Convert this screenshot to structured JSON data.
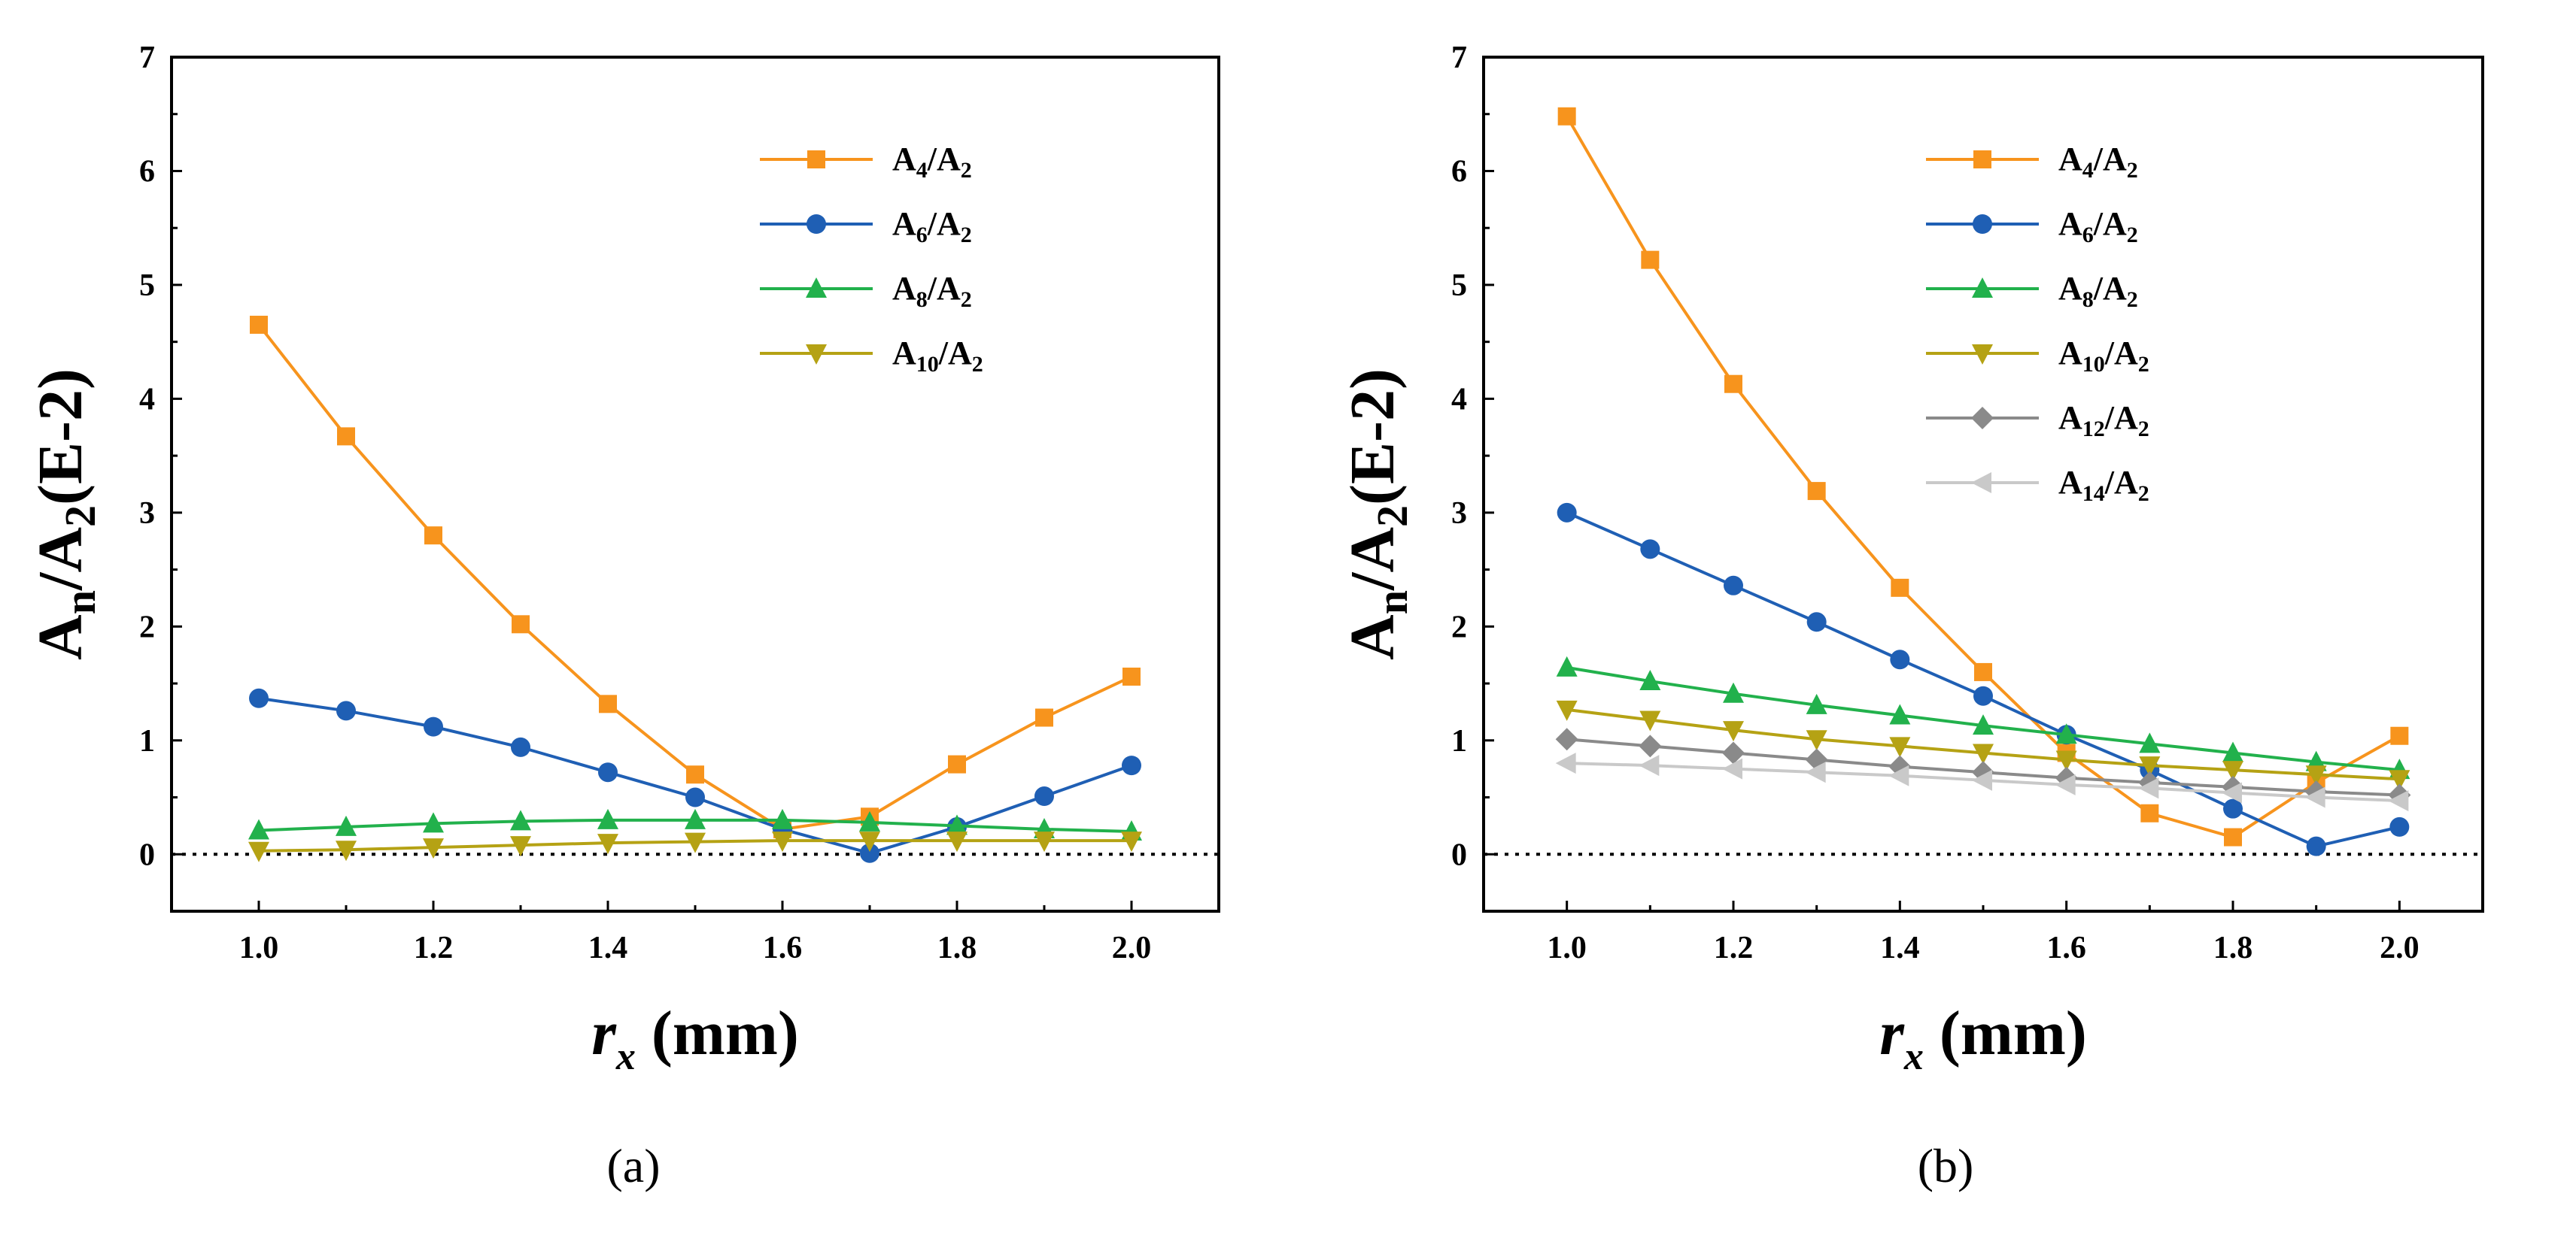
{
  "colors": {
    "A4": "#f7941d",
    "A6": "#1f5fb4",
    "A8": "#22b14c",
    "A10": "#b5a214",
    "A12": "#8a8a8a",
    "A14": "#c9c9c9",
    "axis": "#000000",
    "zero_line": "#000000"
  },
  "chart_data": [
    {
      "panel_label": "(a)",
      "type": "line",
      "xlabel_var": "r",
      "xlabel_sub": "x",
      "xlabel_unit": " (mm)",
      "ylabel_main": "A",
      "ylabel_sub1": "n",
      "ylabel_mid": "/A",
      "ylabel_sub2": "2",
      "ylabel_tail": "(E-2)",
      "xlim": [
        0.9,
        2.1
      ],
      "ylim": [
        -0.5,
        7
      ],
      "xticks": [
        "1.0",
        "1.2",
        "1.4",
        "1.6",
        "1.8",
        "2.0"
      ],
      "yticks": [
        "0",
        "1",
        "2",
        "3",
        "4",
        "5",
        "6",
        "7"
      ],
      "zero_line": true,
      "x": [
        1.0,
        1.1,
        1.2,
        1.3,
        1.4,
        1.5,
        1.6,
        1.7,
        1.8,
        1.9,
        2.0
      ],
      "series": [
        {
          "key": "A4",
          "name_main": "A",
          "name_sub": "4",
          "name_tail": "/A",
          "name_sub2": "2",
          "marker": "square",
          "values": [
            4.65,
            3.67,
            2.8,
            2.02,
            1.32,
            0.7,
            0.22,
            0.33,
            0.79,
            1.2,
            1.56
          ]
        },
        {
          "key": "A6",
          "name_main": "A",
          "name_sub": "6",
          "name_tail": "/A",
          "name_sub2": "2",
          "marker": "circle",
          "values": [
            1.37,
            1.26,
            1.12,
            0.94,
            0.72,
            0.5,
            0.22,
            0.01,
            0.24,
            0.51,
            0.78
          ]
        },
        {
          "key": "A8",
          "name_main": "A",
          "name_sub": "8",
          "name_tail": "/A",
          "name_sub2": "2",
          "marker": "triangle-up",
          "values": [
            0.21,
            0.24,
            0.27,
            0.29,
            0.3,
            0.3,
            0.3,
            0.28,
            0.25,
            0.22,
            0.2
          ]
        },
        {
          "key": "A10",
          "name_main": "A",
          "name_sub": "10",
          "name_tail": "/A",
          "name_sub2": "2",
          "marker": "triangle-down",
          "values": [
            0.03,
            0.04,
            0.06,
            0.08,
            0.1,
            0.11,
            0.12,
            0.12,
            0.12,
            0.12,
            0.12
          ]
        }
      ]
    },
    {
      "panel_label": "(b)",
      "type": "line",
      "xlabel_var": "r",
      "xlabel_sub": "x",
      "xlabel_unit": " (mm)",
      "ylabel_main": "A",
      "ylabel_sub1": "n",
      "ylabel_mid": "/A",
      "ylabel_sub2": "2",
      "ylabel_tail": "(E-2)",
      "xlim": [
        0.9,
        2.1
      ],
      "ylim": [
        -0.5,
        7
      ],
      "xticks": [
        "1.0",
        "1.2",
        "1.4",
        "1.6",
        "1.8",
        "2.0"
      ],
      "yticks": [
        "0",
        "1",
        "2",
        "3",
        "4",
        "5",
        "6",
        "7"
      ],
      "zero_line": true,
      "x": [
        1.0,
        1.1,
        1.2,
        1.3,
        1.4,
        1.5,
        1.6,
        1.7,
        1.8,
        1.9,
        2.0
      ],
      "series": [
        {
          "key": "A4",
          "name_main": "A",
          "name_sub": "4",
          "name_tail": "/A",
          "name_sub2": "2",
          "marker": "square",
          "values": [
            6.48,
            5.22,
            4.13,
            3.19,
            2.34,
            1.6,
            0.89,
            0.36,
            0.15,
            0.63,
            1.04
          ]
        },
        {
          "key": "A6",
          "name_main": "A",
          "name_sub": "6",
          "name_tail": "/A",
          "name_sub2": "2",
          "marker": "circle",
          "values": [
            3.0,
            2.68,
            2.36,
            2.04,
            1.71,
            1.39,
            1.05,
            0.74,
            0.4,
            0.07,
            0.24
          ]
        },
        {
          "key": "A8",
          "name_main": "A",
          "name_sub": "8",
          "name_tail": "/A",
          "name_sub2": "2",
          "marker": "triangle-up",
          "values": [
            1.64,
            1.52,
            1.41,
            1.31,
            1.22,
            1.13,
            1.05,
            0.97,
            0.89,
            0.81,
            0.74
          ]
        },
        {
          "key": "A10",
          "name_main": "A",
          "name_sub": "10",
          "name_tail": "/A",
          "name_sub2": "2",
          "marker": "triangle-down",
          "values": [
            1.27,
            1.18,
            1.09,
            1.01,
            0.95,
            0.89,
            0.83,
            0.78,
            0.74,
            0.7,
            0.66
          ]
        },
        {
          "key": "A12",
          "name_main": "A",
          "name_sub": "12",
          "name_tail": "/A",
          "name_sub2": "2",
          "marker": "diamond",
          "values": [
            1.01,
            0.95,
            0.89,
            0.83,
            0.77,
            0.72,
            0.67,
            0.63,
            0.59,
            0.55,
            0.52
          ]
        },
        {
          "key": "A14",
          "name_main": "A",
          "name_sub": "14",
          "name_tail": "/A",
          "name_sub2": "2",
          "marker": "triangle-left",
          "values": [
            0.8,
            0.78,
            0.75,
            0.72,
            0.69,
            0.65,
            0.61,
            0.58,
            0.54,
            0.5,
            0.47
          ]
        }
      ]
    }
  ]
}
